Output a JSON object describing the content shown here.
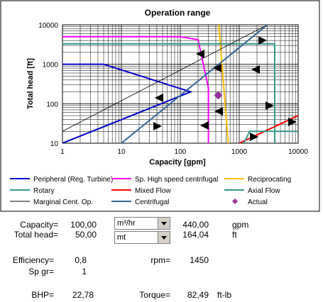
{
  "chart_data": {
    "type": "line",
    "title": "Operation range",
    "xlabel": "Capacity [gpm]",
    "ylabel": "Total head [ft]",
    "xscale": "log",
    "yscale": "log",
    "xlim": [
      1,
      10000
    ],
    "ylim": [
      10,
      10000
    ],
    "x_ticks": [
      "1",
      "10",
      "100",
      "1000",
      "10000"
    ],
    "y_ticks": [
      "10",
      "100",
      "1000",
      "10000"
    ],
    "grid": true,
    "legend_position": "bottom",
    "series": [
      {
        "name": "Peripheral (Reg. Turbine)",
        "color": "#0000cc",
        "points": [
          [
            1,
            1000
          ],
          [
            5,
            1000
          ],
          [
            150,
            200
          ],
          [
            1,
            10
          ]
        ]
      },
      {
        "name": "Sp. High speed centrifugal",
        "color": "#ff00ff",
        "points": [
          [
            1,
            5000
          ],
          [
            100,
            5000
          ],
          [
            200,
            4200
          ],
          [
            300,
            250
          ],
          [
            300,
            10
          ]
        ]
      },
      {
        "name": "Reciprocating",
        "color": "#ffbf00",
        "points": [
          [
            450,
            10000
          ],
          [
            650,
            10
          ]
        ]
      },
      {
        "name": "Rotary",
        "color": "#339988",
        "points": [
          [
            1,
            3300
          ],
          [
            4000,
            3300
          ],
          [
            4000,
            10
          ]
        ]
      },
      {
        "name": "Mixed Flow",
        "color": "#ff0000",
        "points": [
          [
            1000,
            10
          ],
          [
            10000,
            50
          ]
        ]
      },
      {
        "name": "Axial Flow",
        "color": "#339988",
        "points": [
          [
            1200,
            10
          ],
          [
            1500,
            20
          ],
          [
            10000,
            20
          ]
        ]
      },
      {
        "name": "Marginal Cent. Op.",
        "color": "#000000",
        "points": [
          [
            1,
            20
          ],
          [
            3000,
            10000
          ]
        ]
      },
      {
        "name": "Centrifugal",
        "color": "#336699",
        "points": [
          [
            10,
            10
          ],
          [
            3000,
            10000
          ]
        ]
      },
      {
        "name": "Actual",
        "color": "#993399",
        "marker": "diamond",
        "points": [
          [
            440,
            164
          ]
        ]
      }
    ]
  },
  "inputs": {
    "capacity_label": "Capacity=",
    "capacity_value": "100,00",
    "capacity_unit": "m³/hr",
    "capacity_converted": "440,00",
    "capacity_converted_unit": "gpm",
    "head_label": "Total head=",
    "head_value": "50,00",
    "head_unit": "mt",
    "head_converted": "164,04",
    "head_converted_unit": "ft"
  },
  "params": {
    "efficiency_label": "Efficiency=",
    "efficiency_value": "0,8",
    "rpm_label": "rpm=",
    "rpm_value": "1450",
    "spgr_label": "Sp gr=",
    "spgr_value": "1"
  },
  "results": {
    "bhp_label": "BHP=",
    "bhp_value": "22,78",
    "torque_label": "Torque=",
    "torque_value": "82,49",
    "torque_unit": "ft-lb"
  },
  "colors": {
    "outer_frame": "#000000",
    "grid": "#000000",
    "combo_button": "#d4d0c8"
  }
}
